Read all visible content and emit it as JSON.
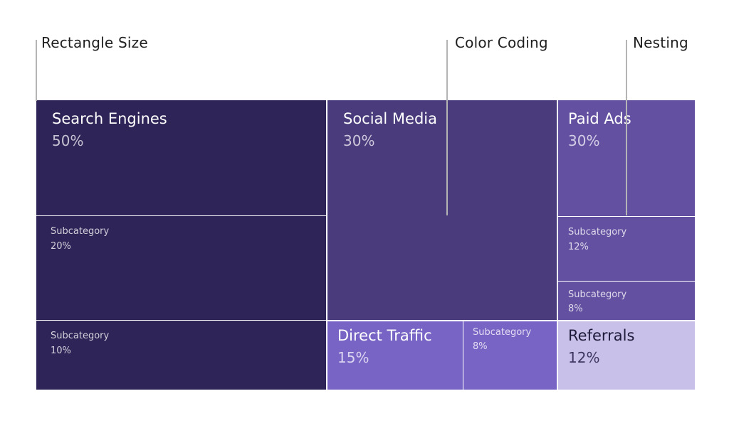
{
  "callouts": [
    {
      "label": "Rectangle Size"
    },
    {
      "label": "Color Coding"
    },
    {
      "label": "Nesting"
    }
  ],
  "treemap": {
    "colors": {
      "search": "#2e2457",
      "social": "#4a3b7c",
      "paid": "#6350a1",
      "direct": "#7864c5",
      "referrals": "#c8c0e8"
    },
    "search_engines": {
      "name": "Search Engines",
      "value": "50%"
    },
    "search_sub_1": {
      "name": "Subcategory",
      "value": "20%"
    },
    "search_sub_2": {
      "name": "Subcategory",
      "value": "10%"
    },
    "social_media": {
      "name": "Social Media",
      "value": "30%"
    },
    "paid_ads": {
      "name": "Paid Ads",
      "value": "30%"
    },
    "paid_sub_1": {
      "name": "Subcategory",
      "value": "12%"
    },
    "paid_sub_2": {
      "name": "Subcategory",
      "value": "8%"
    },
    "direct_traffic": {
      "name": "Direct Traffic",
      "value": "15%"
    },
    "direct_sub_1": {
      "name": "Subcategory",
      "value": "8%"
    },
    "referrals": {
      "name": "Referrals",
      "value": "12%"
    }
  }
}
